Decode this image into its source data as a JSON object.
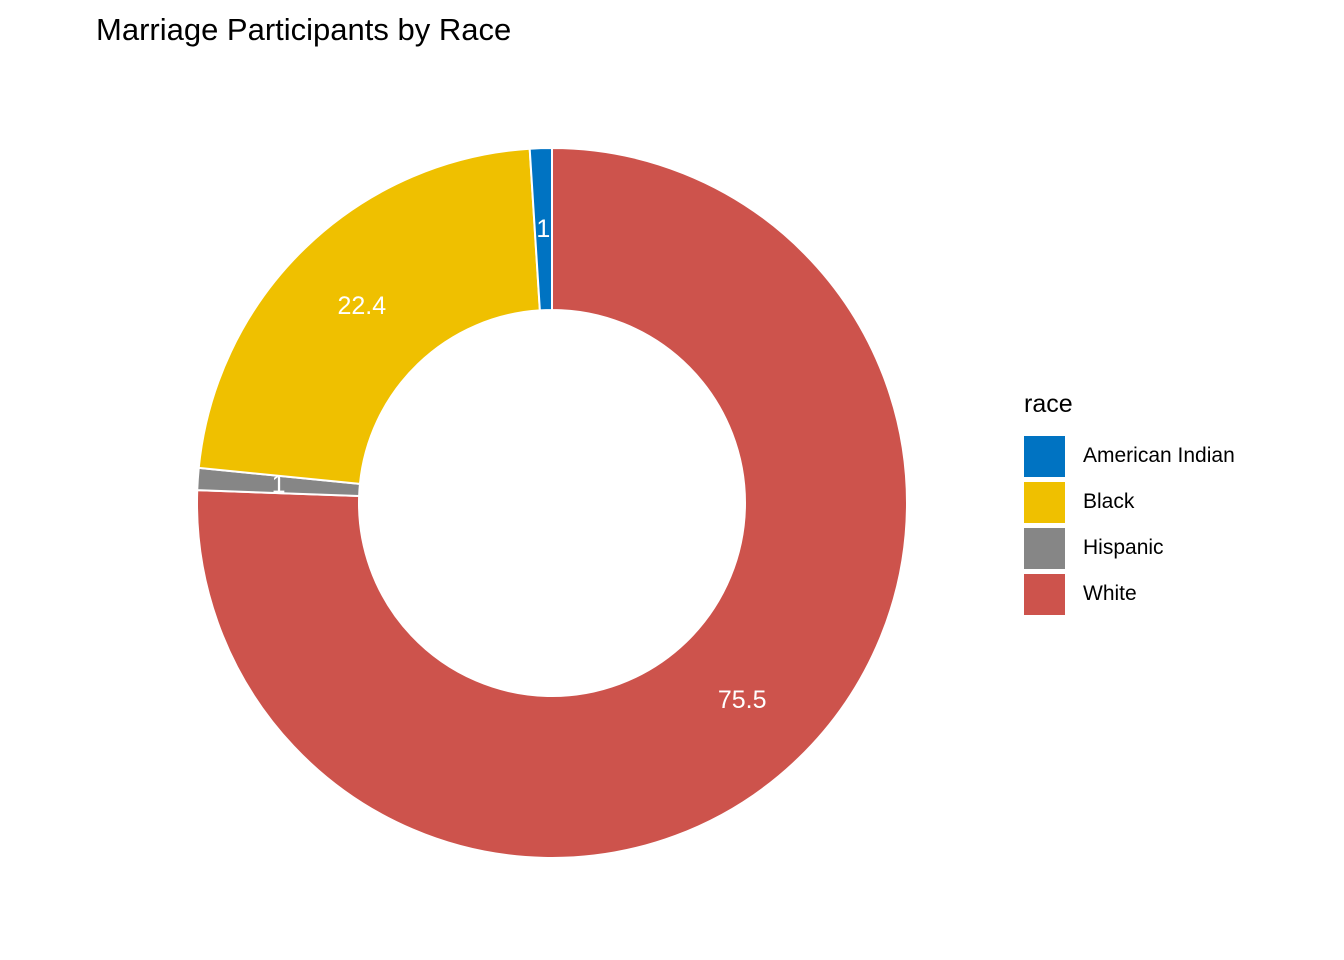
{
  "chart_data": {
    "type": "pie",
    "style": "donut",
    "title": "Marriage Participants by Race",
    "legend_title": "race",
    "legend_position": "right",
    "categories": [
      "American Indian",
      "Black",
      "Hispanic",
      "White"
    ],
    "values": [
      1,
      22.4,
      1,
      75.5
    ],
    "value_labels": [
      "1",
      "22.4",
      "1",
      "75.5"
    ],
    "colors": [
      "#0073C2",
      "#EFC000",
      "#868686",
      "#CD534C"
    ],
    "label_color": "#FFFFFF",
    "grid": false
  }
}
